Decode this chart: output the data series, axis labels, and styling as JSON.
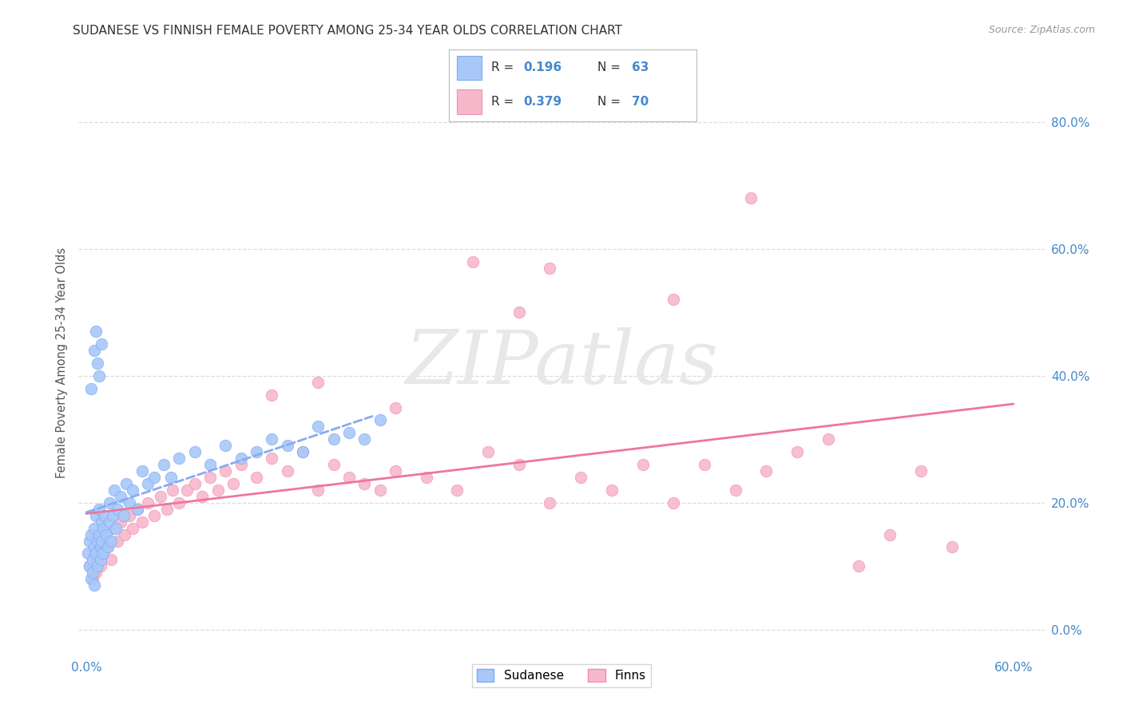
{
  "title": "SUDANESE VS FINNISH FEMALE POVERTY AMONG 25-34 YEAR OLDS CORRELATION CHART",
  "source": "Source: ZipAtlas.com",
  "ylabel": "Female Poverty Among 25-34 Year Olds",
  "xlim": [
    -0.005,
    0.62
  ],
  "ylim": [
    -0.04,
    0.88
  ],
  "xtick_positions": [
    0.0,
    0.1,
    0.2,
    0.3,
    0.4,
    0.5,
    0.6
  ],
  "xtick_labels": [
    "0.0%",
    "",
    "",
    "",
    "",
    "",
    "60.0%"
  ],
  "ytick_positions_right": [
    0.0,
    0.2,
    0.4,
    0.6,
    0.8
  ],
  "ytick_labels_right": [
    "0.0%",
    "20.0%",
    "40.0%",
    "60.0%",
    "80.0%"
  ],
  "sudanese_color": "#a8c8fa",
  "sudanese_edge_color": "#7aaaf0",
  "finns_color": "#f7b8cc",
  "finns_edge_color": "#f090b0",
  "sudanese_line_color": "#88aaee",
  "finns_line_color": "#ee7799",
  "label_color": "#4488cc",
  "title_color": "#333333",
  "source_color": "#999999",
  "grid_color": "#dddddd",
  "background_color": "#ffffff",
  "watermark_text": "ZIPatlas",
  "watermark_color": "#e8e8e8",
  "sudanese_R": "0.196",
  "sudanese_N": "63",
  "finns_R": "0.379",
  "finns_N": "70",
  "legend_label_sud": "Sudanese",
  "legend_label_fin": "Finns"
}
